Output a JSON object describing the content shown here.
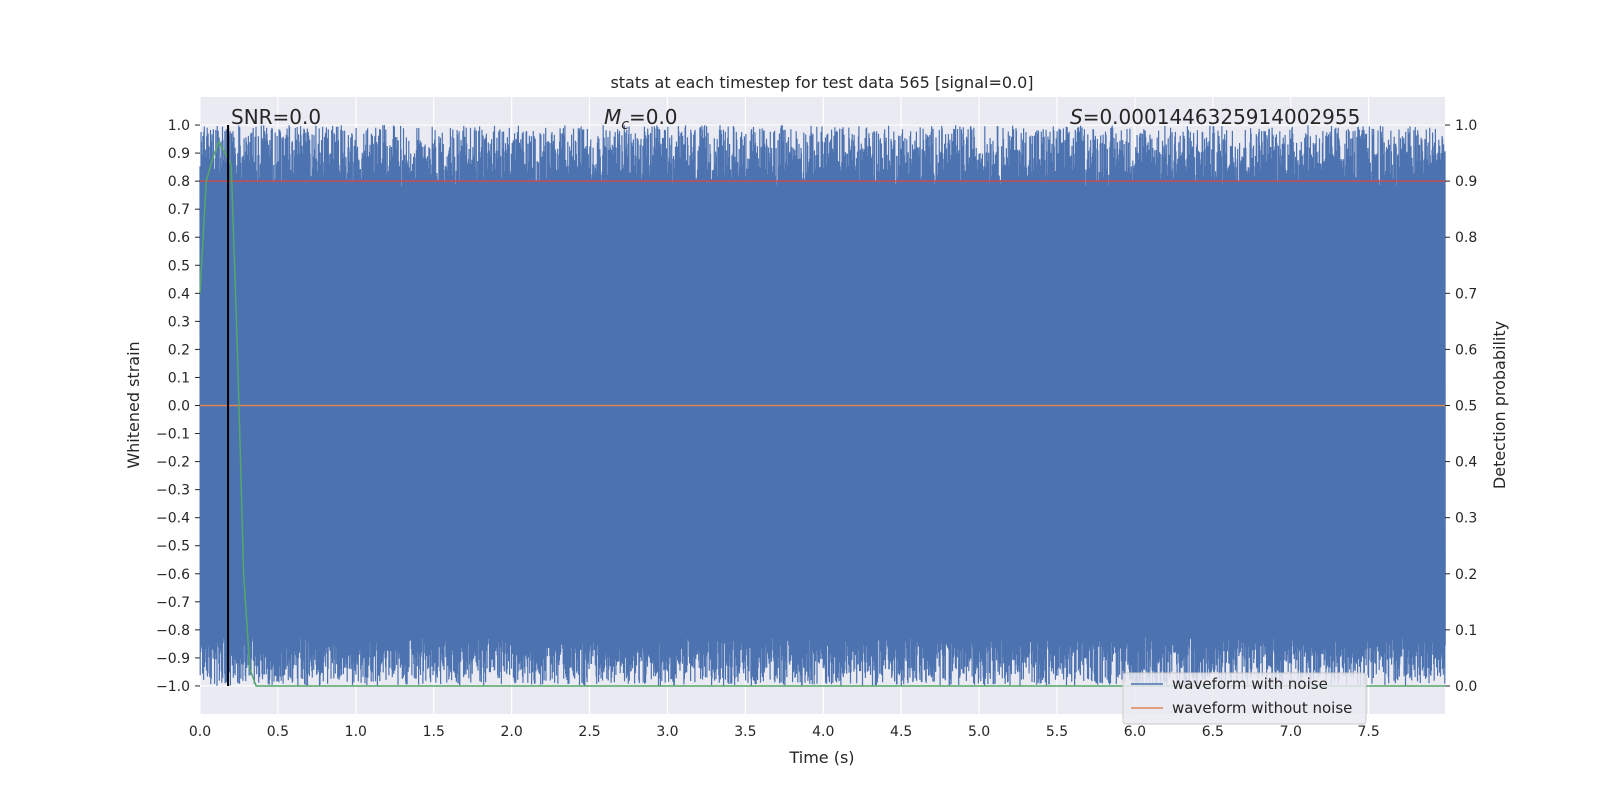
{
  "chart_data": {
    "type": "line",
    "title": "stats at each timestep for test data 565 [signal=0.0]",
    "xlabel": "Time (s)",
    "ylabel_left": "Whitened strain",
    "ylabel_right": "Detection probability",
    "xlim": [
      0.0,
      7.99
    ],
    "ylim_left": [
      -1.1,
      1.1
    ],
    "ylim_right": [
      -0.05,
      1.05
    ],
    "x_ticks": [
      "0.0",
      "0.5",
      "1.0",
      "1.5",
      "2.0",
      "2.5",
      "3.0",
      "3.5",
      "4.0",
      "4.5",
      "5.0",
      "5.5",
      "6.0",
      "6.5",
      "7.0",
      "7.5"
    ],
    "y_left_ticks": [
      "1.0",
      "0.9",
      "0.8",
      "0.7",
      "0.6",
      "0.5",
      "0.4",
      "0.3",
      "0.2",
      "0.1",
      "0.0",
      "−0.1",
      "−0.2",
      "−0.3",
      "−0.4",
      "−0.5",
      "−0.6",
      "−0.7",
      "−0.8",
      "−0.9",
      "−1.0"
    ],
    "y_right_ticks": [
      "1.0",
      "0.9",
      "0.8",
      "0.7",
      "0.6",
      "0.5",
      "0.4",
      "0.3",
      "0.2",
      "0.1",
      "0.0"
    ],
    "grid": true,
    "background": "#eaeaf2",
    "annotations": {
      "snr": "SNR=0.0",
      "mc_symbol": "M",
      "mc_sub": "c",
      "mc_value": "=0.0",
      "s_symbol": "S",
      "s_value": "=0.00014463259140029​55"
    },
    "marker_line_x": 0.18,
    "threshold_right": 0.9,
    "series": [
      {
        "name": "waveform with noise",
        "color": "#4c72b0",
        "axis": "left",
        "description_range": [
          -1.0,
          1.0
        ]
      },
      {
        "name": "waveform without noise",
        "color": "#dd8452",
        "axis": "left",
        "values_constant": 0.0
      },
      {
        "axis": "right",
        "color": "#55a868",
        "x": [
          0.0,
          0.04,
          0.08,
          0.12,
          0.16,
          0.2,
          0.24,
          0.28,
          0.32,
          0.36,
          0.4,
          7.99
        ],
        "y": [
          0.7,
          0.9,
          0.94,
          0.97,
          0.95,
          0.93,
          0.6,
          0.2,
          0.03,
          0.0,
          0.0,
          0.0
        ]
      },
      {
        "axis": "right",
        "color": "#c44e52",
        "x": [
          0.0,
          7.99
        ],
        "y": [
          0.9,
          0.9
        ]
      }
    ],
    "legend": {
      "placement": "lower-right",
      "entries": [
        {
          "label": "waveform with noise",
          "color": "#4c72b0"
        },
        {
          "label": "waveform without noise",
          "color": "#dd8452"
        }
      ]
    }
  }
}
